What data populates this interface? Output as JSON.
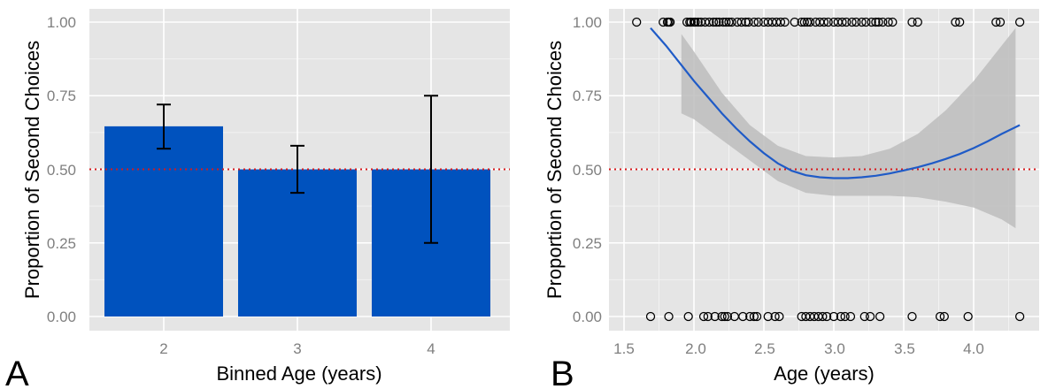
{
  "chart_data": [
    {
      "type": "bar",
      "panel_label": "A",
      "xlabel": "Binned Age (years)",
      "ylabel": "Proportion of Second Choices",
      "categories": [
        "2",
        "3",
        "4"
      ],
      "values": [
        0.646,
        0.5,
        0.5
      ],
      "error_low": [
        0.57,
        0.42,
        0.25
      ],
      "error_high": [
        0.72,
        0.58,
        0.75
      ],
      "ylim": [
        0,
        1
      ],
      "yticks": [
        "0.00",
        "0.25",
        "0.50",
        "0.75",
        "1.00"
      ],
      "reference_line": 0.5,
      "bar_color": "#0052BE",
      "reference_color": "#D7191C",
      "grid": true
    },
    {
      "type": "scatter",
      "panel_label": "B",
      "xlabel": "Age (years)",
      "ylabel": "Proportion of Second Choices",
      "xlim": [
        1.44,
        4.38
      ],
      "ylim": [
        -0.045,
        1.045
      ],
      "xticks": [
        "1.5",
        "2.0",
        "2.5",
        "3.0",
        "3.5",
        "4.0"
      ],
      "yticks": [
        "0.00",
        "0.25",
        "0.50",
        "0.75",
        "1.00"
      ],
      "reference_line": 0.5,
      "grid": true,
      "points_y1": [
        1.59,
        1.78,
        1.81,
        1.82,
        1.83,
        1.95,
        1.97,
        1.98,
        2.0,
        2.01,
        2.03,
        2.05,
        2.08,
        2.11,
        2.14,
        2.16,
        2.18,
        2.21,
        2.23,
        2.25,
        2.27,
        2.31,
        2.34,
        2.37,
        2.39,
        2.43,
        2.46,
        2.5,
        2.53,
        2.56,
        2.59,
        2.62,
        2.65,
        2.72,
        2.77,
        2.79,
        2.81,
        2.83,
        2.87,
        2.9,
        2.93,
        2.96,
        3.0,
        3.03,
        3.06,
        3.09,
        3.13,
        3.16,
        3.2,
        3.23,
        3.27,
        3.3,
        3.32,
        3.35,
        3.39,
        3.42,
        3.56,
        3.6,
        3.87,
        3.9,
        4.16,
        4.19,
        4.33
      ],
      "points_y0": [
        1.69,
        1.82,
        1.96,
        2.07,
        2.1,
        2.15,
        2.2,
        2.22,
        2.24,
        2.29,
        2.35,
        2.4,
        2.43,
        2.45,
        2.53,
        2.58,
        2.61,
        2.77,
        2.8,
        2.83,
        2.86,
        2.89,
        2.92,
        2.95,
        3.0,
        3.05,
        3.08,
        3.12,
        3.22,
        3.26,
        3.33,
        3.56,
        3.76,
        3.79,
        3.96,
        4.33
      ],
      "fit_curve": {
        "x": [
          1.69,
          1.8,
          1.9,
          2.0,
          2.1,
          2.2,
          2.3,
          2.4,
          2.5,
          2.6,
          2.7,
          2.8,
          2.9,
          3.0,
          3.1,
          3.2,
          3.3,
          3.4,
          3.5,
          3.6,
          3.7,
          3.8,
          3.9,
          4.0,
          4.1,
          4.2,
          4.33
        ],
        "y": [
          0.98,
          0.92,
          0.86,
          0.8,
          0.745,
          0.69,
          0.64,
          0.595,
          0.555,
          0.52,
          0.495,
          0.48,
          0.473,
          0.47,
          0.47,
          0.473,
          0.478,
          0.486,
          0.496,
          0.507,
          0.52,
          0.535,
          0.552,
          0.572,
          0.595,
          0.62,
          0.65
        ]
      },
      "confidence_band": {
        "x": [
          1.91,
          2.0,
          2.2,
          2.4,
          2.6,
          2.8,
          3.0,
          3.2,
          3.4,
          3.6,
          3.8,
          4.0,
          4.2,
          4.3
        ],
        "upper": [
          0.96,
          0.9,
          0.76,
          0.65,
          0.58,
          0.545,
          0.54,
          0.545,
          0.57,
          0.62,
          0.7,
          0.8,
          0.92,
          0.98
        ],
        "lower": [
          0.69,
          0.67,
          0.6,
          0.53,
          0.46,
          0.42,
          0.41,
          0.41,
          0.41,
          0.405,
          0.39,
          0.37,
          0.33,
          0.3
        ]
      },
      "line_color": "#1F5BC7",
      "band_color": "#BDBDBD",
      "reference_color": "#D7191C"
    }
  ]
}
